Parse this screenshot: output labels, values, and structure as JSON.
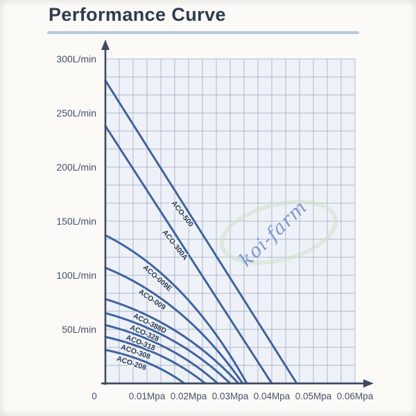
{
  "title": "Performance Curve",
  "watermark": {
    "text": "koi-farm"
  },
  "colors": {
    "page_bg": "#fbfaf7",
    "title": "#2d3a52",
    "title_underline": "#b5c9df",
    "plot_bg": "#eef2f8",
    "grid": "#8a96b0",
    "axis": "#3e4a62",
    "curve": "#3c63a6",
    "curve_label": "#2b3950",
    "tick_text": "#44516a",
    "watermark_text": "#5578cc",
    "watermark_swoosh": "#cfe2ca"
  },
  "chart_data": {
    "type": "line",
    "title": "Performance Curve",
    "x_unit": "Mpa",
    "y_unit": "L/min",
    "xlim": [
      0,
      0.06
    ],
    "ylim": [
      0,
      300
    ],
    "grid": true,
    "legend_position": "labels-on-lines",
    "x_ticks": [
      "0",
      "0.01Mpa",
      "0.02Mpa",
      "0.03Mpa",
      "0.04Mpa",
      "0.05Mpa",
      "0.06Mpa"
    ],
    "y_ticks": [
      "50L/min",
      "100L/min",
      "150L/min",
      "200L/min",
      "250L/min",
      "300L/min"
    ],
    "series": [
      {
        "name": "ACO-500",
        "max_flow_l_min": 280,
        "max_pressure_mpa": 0.046,
        "points": [
          [
            0,
            280
          ],
          [
            0.046,
            0
          ]
        ],
        "straight": true,
        "label_t": 0.43
      },
      {
        "name": "ACO-300A",
        "max_flow_l_min": 238,
        "max_pressure_mpa": 0.04,
        "points": [
          [
            0,
            238
          ],
          [
            0.04,
            0
          ]
        ],
        "straight": true,
        "label_t": 0.45
      },
      {
        "name": "ACO-009E",
        "max_flow_l_min": 137,
        "max_pressure_mpa": 0.034,
        "points": [
          [
            0,
            137
          ],
          [
            0.034,
            0
          ]
        ],
        "straight": false,
        "label_t": 0.36
      },
      {
        "name": "ACO-009",
        "max_flow_l_min": 107,
        "max_pressure_mpa": 0.033,
        "points": [
          [
            0,
            107
          ],
          [
            0.033,
            0
          ]
        ],
        "straight": false,
        "label_t": 0.33
      },
      {
        "name": "ACO-388D",
        "max_flow_l_min": 78,
        "max_pressure_mpa": 0.032,
        "points": [
          [
            0,
            78
          ],
          [
            0.032,
            0
          ]
        ],
        "straight": false,
        "label_t": 0.32
      },
      {
        "name": "ACO-328",
        "max_flow_l_min": 65,
        "max_pressure_mpa": 0.03,
        "points": [
          [
            0,
            65
          ],
          [
            0.03,
            0
          ]
        ],
        "straight": false,
        "label_t": 0.3
      },
      {
        "name": "ACO-318",
        "max_flow_l_min": 54,
        "max_pressure_mpa": 0.027,
        "points": [
          [
            0,
            54
          ],
          [
            0.027,
            0
          ]
        ],
        "straight": false,
        "label_t": 0.3
      },
      {
        "name": "ACO-308",
        "max_flow_l_min": 43,
        "max_pressure_mpa": 0.024,
        "points": [
          [
            0,
            43
          ],
          [
            0.024,
            0
          ]
        ],
        "straight": false,
        "label_t": 0.29
      },
      {
        "name": "ACO-208",
        "max_flow_l_min": 31,
        "max_pressure_mpa": 0.019,
        "points": [
          [
            0,
            31
          ],
          [
            0.019,
            0
          ]
        ],
        "straight": false,
        "label_t": 0.32
      }
    ]
  }
}
